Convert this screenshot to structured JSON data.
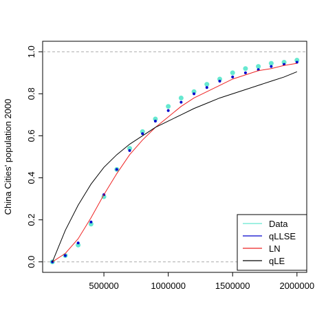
{
  "chart_data": {
    "type": "line",
    "y_label": "China Cities' population 2000",
    "x": [
      100000,
      200000,
      300000,
      400000,
      500000,
      600000,
      700000,
      800000,
      900000,
      1000000,
      1100000,
      1200000,
      1300000,
      1400000,
      1500000,
      1600000,
      1700000,
      1800000,
      1900000,
      2000000
    ],
    "series": [
      {
        "name": "Data",
        "color": "#66e8d0",
        "style": "points",
        "values": [
          0.0,
          0.03,
          0.08,
          0.18,
          0.31,
          0.44,
          0.54,
          0.62,
          0.68,
          0.74,
          0.78,
          0.81,
          0.845,
          0.87,
          0.9,
          0.92,
          0.93,
          0.945,
          0.95,
          0.96
        ]
      },
      {
        "name": "qLLSE",
        "color": "#0000cc",
        "style": "points",
        "values": [
          0.0,
          0.03,
          0.09,
          0.19,
          0.32,
          0.44,
          0.53,
          0.61,
          0.67,
          0.72,
          0.76,
          0.8,
          0.83,
          0.86,
          0.88,
          0.9,
          0.915,
          0.93,
          0.94,
          0.95
        ]
      },
      {
        "name": "LN",
        "color": "#ee2222",
        "style": "line",
        "values": [
          0.0,
          0.04,
          0.11,
          0.21,
          0.32,
          0.42,
          0.51,
          0.58,
          0.64,
          0.69,
          0.74,
          0.78,
          0.81,
          0.84,
          0.87,
          0.89,
          0.91,
          0.92,
          0.935,
          0.945
        ]
      },
      {
        "name": "qLE",
        "color": "#000000",
        "style": "line",
        "values": [
          0.0,
          0.15,
          0.27,
          0.37,
          0.45,
          0.51,
          0.56,
          0.6,
          0.64,
          0.67,
          0.7,
          0.73,
          0.755,
          0.78,
          0.8,
          0.82,
          0.84,
          0.86,
          0.88,
          0.905
        ]
      }
    ],
    "xlim": [
      24000,
      2076000
    ],
    "ylim": [
      -0.05,
      1.05
    ],
    "xticks": [
      500000,
      1000000,
      1500000,
      2000000
    ],
    "yticks": [
      {
        "value": 0,
        "label": "0.0"
      },
      {
        "value": 0.2,
        "label": "0.2"
      },
      {
        "value": 0.4,
        "label": "0.4"
      },
      {
        "value": 0.6,
        "label": "0.6"
      },
      {
        "value": 0.8,
        "label": "0.8"
      },
      {
        "value": 1,
        "label": "1.0"
      }
    ],
    "hlines": [
      0,
      1
    ],
    "legend": "bottom-right"
  }
}
